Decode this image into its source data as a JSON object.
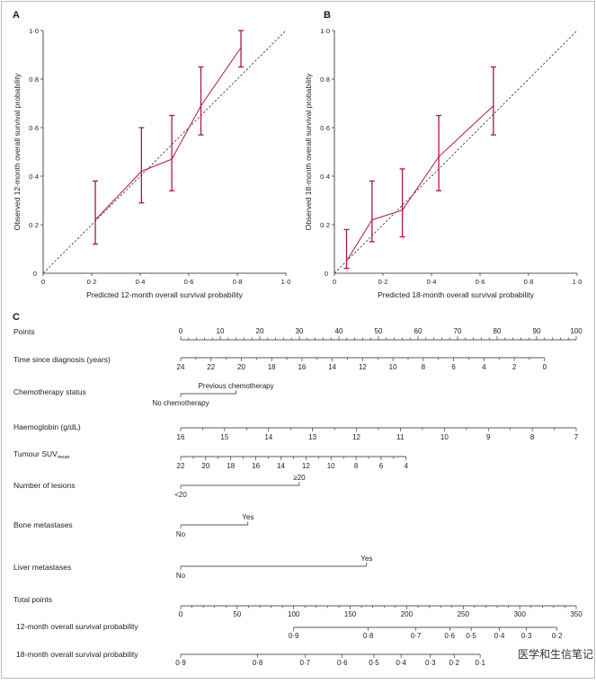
{
  "panels": {
    "a": "A",
    "b": "B",
    "c": "C"
  },
  "watermark": "医学和生信笔记",
  "chart_data": [
    {
      "type": "line",
      "title": "",
      "xlabel": "Predicted 12-month overall survival probability",
      "ylabel": "Observed 12-month overall survival probability",
      "xlim": [
        0,
        1
      ],
      "ylim": [
        0,
        1
      ],
      "x_ticks": [
        0,
        0.2,
        0.4,
        0.6,
        0.8,
        1.0
      ],
      "y_ticks": [
        0,
        0.2,
        0.4,
        0.6,
        0.8,
        1.0
      ],
      "x_tick_labels": [
        "0",
        "0·2",
        "0·4",
        "0·6",
        "0·8",
        "1·0"
      ],
      "y_tick_labels": [
        "0",
        "0·2",
        "0·4",
        "0·6",
        "0·8",
        "1·0"
      ],
      "reference_line": "diagonal",
      "x": [
        0.215,
        0.405,
        0.53,
        0.65,
        0.815
      ],
      "y": [
        0.22,
        0.42,
        0.47,
        0.69,
        0.93
      ],
      "lower": [
        0.12,
        0.29,
        0.34,
        0.57,
        0.85
      ],
      "upper": [
        0.38,
        0.6,
        0.65,
        0.85,
        1.0
      ]
    },
    {
      "type": "line",
      "title": "",
      "xlabel": "Predicted 18-month overall survival probability",
      "ylabel": "Observed 18-month overall survival probability",
      "xlim": [
        0,
        1
      ],
      "ylim": [
        0,
        1
      ],
      "x_ticks": [
        0,
        0.2,
        0.4,
        0.6,
        0.8,
        1.0
      ],
      "y_ticks": [
        0,
        0.2,
        0.4,
        0.6,
        0.8,
        1.0
      ],
      "x_tick_labels": [
        "0",
        "0·2",
        "0·4",
        "0·6",
        "0·8",
        "1·0"
      ],
      "y_tick_labels": [
        "0",
        "0·2",
        "0·4",
        "0·6",
        "0·8",
        "1·0"
      ],
      "reference_line": "diagonal",
      "x": [
        0.05,
        0.155,
        0.28,
        0.43,
        0.655
      ],
      "y": [
        0.05,
        0.22,
        0.26,
        0.48,
        0.69
      ],
      "lower": [
        0.02,
        0.13,
        0.15,
        0.34,
        0.57
      ],
      "upper": [
        0.18,
        0.38,
        0.43,
        0.65,
        0.85
      ]
    },
    {
      "type": "nomogram",
      "rows": [
        {
          "label": "Points",
          "kind": "points",
          "range": [
            0,
            100
          ],
          "labels": [
            "0",
            "10",
            "20",
            "30",
            "40",
            "50",
            "60",
            "70",
            "80",
            "90",
            "100"
          ]
        },
        {
          "label": "Time since diagnosis (years)",
          "kind": "reverse",
          "range": [
            24,
            0
          ],
          "labels": [
            "24",
            "22",
            "20",
            "18",
            "16",
            "14",
            "12",
            "10",
            "8",
            "6",
            "4",
            "2",
            "0"
          ],
          "points_range": [
            0,
            92
          ]
        },
        {
          "label": "Chemotherapy status",
          "kind": "binary",
          "low_label": "No chemotherapy",
          "high_label": "Previous chemotherapy",
          "high_points": 14
        },
        {
          "label": "Haemoglobin (g/dL)",
          "kind": "reverse",
          "range": [
            16,
            7
          ],
          "labels": [
            "16",
            "15",
            "14",
            "13",
            "12",
            "11",
            "10",
            "9",
            "8",
            "7"
          ],
          "points_range": [
            0,
            100
          ]
        },
        {
          "label": "Tumour SUV",
          "label_sub": "mean",
          "kind": "reverse",
          "range": [
            22,
            4
          ],
          "labels": [
            "22",
            "20",
            "18",
            "16",
            "14",
            "12",
            "10",
            "8",
            "6",
            "4"
          ],
          "points_range": [
            0,
            57
          ]
        },
        {
          "label": "Number of lesions",
          "kind": "binary",
          "low_label": "<20",
          "high_label": "≥20",
          "high_points": 30
        },
        {
          "label": "Bone metastases",
          "kind": "binary",
          "low_label": "No",
          "high_label": "Yes",
          "high_points": 17
        },
        {
          "label": "Liver metastases",
          "kind": "binary",
          "low_label": "No",
          "high_label": "Yes",
          "high_points": 47
        },
        {
          "label": "Total points",
          "kind": "total",
          "range": [
            0,
            350
          ],
          "labels": [
            "0",
            "50",
            "100",
            "150",
            "200",
            "250",
            "300",
            "350"
          ]
        },
        {
          "label": "12-month overall survival probability",
          "kind": "prob",
          "ticks": [
            [
              100,
              "0·9"
            ],
            [
              166,
              "0·8"
            ],
            [
              208,
              "0·7"
            ],
            [
              238,
              "0·6"
            ],
            [
              257,
              "0·5"
            ],
            [
              282,
              "0·4"
            ],
            [
              306,
              "0·3"
            ],
            [
              333,
              "0·2"
            ]
          ]
        },
        {
          "label": "18-month overall survival probability",
          "kind": "prob",
          "ticks": [
            [
              0,
              "0·9"
            ],
            [
              68,
              "0·8"
            ],
            [
              110,
              "0·7"
            ],
            [
              143,
              "0·6"
            ],
            [
              171,
              "0·5"
            ],
            [
              195,
              "0·4"
            ],
            [
              221,
              "0·3"
            ],
            [
              242,
              "0·2"
            ],
            [
              265,
              "0·1"
            ]
          ]
        }
      ]
    }
  ]
}
